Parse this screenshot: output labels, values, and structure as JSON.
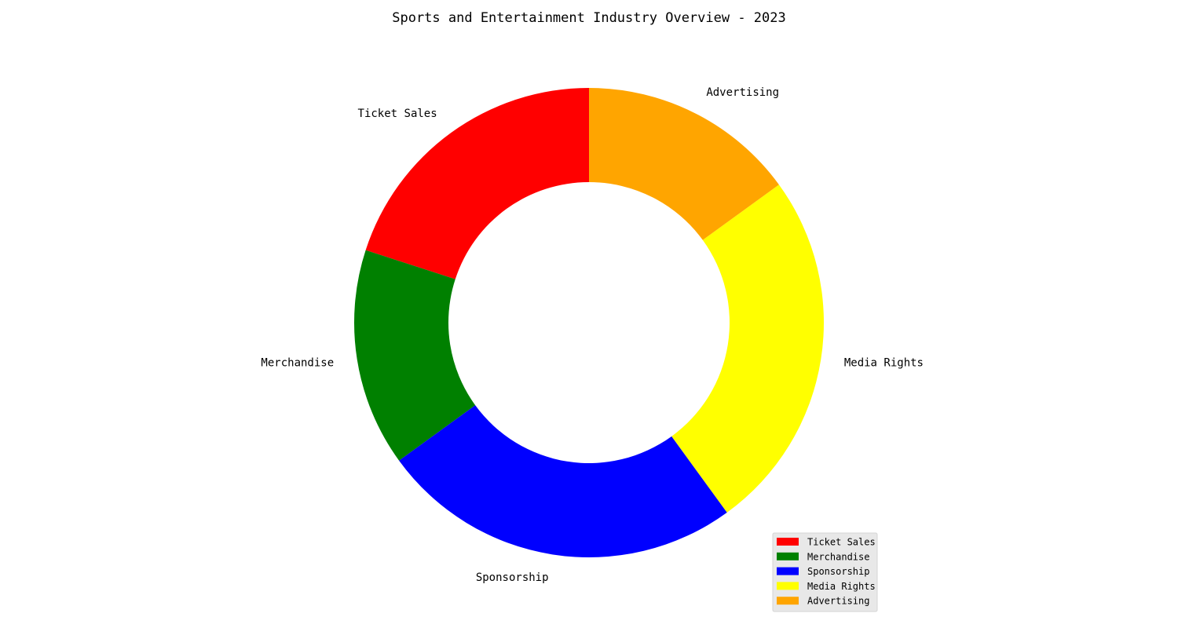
{
  "chart_data": {
    "type": "pie",
    "style": "donut",
    "title": "Sports and Entertainment Industry Overview - 2023",
    "categories": [
      "Ticket Sales",
      "Merchandise",
      "Sponsorship",
      "Media Rights",
      "Advertising"
    ],
    "values": [
      20,
      15,
      25,
      25,
      15
    ],
    "colors": [
      "#ff0000",
      "#008000",
      "#0000ff",
      "#ffff00",
      "#ffa500"
    ],
    "start_angle_deg": 90,
    "direction": "counterclockwise",
    "legend": {
      "placement": "lower-right",
      "entries": [
        "Ticket Sales",
        "Merchandise",
        "Sponsorship",
        "Media Rights",
        "Advertising"
      ]
    }
  }
}
